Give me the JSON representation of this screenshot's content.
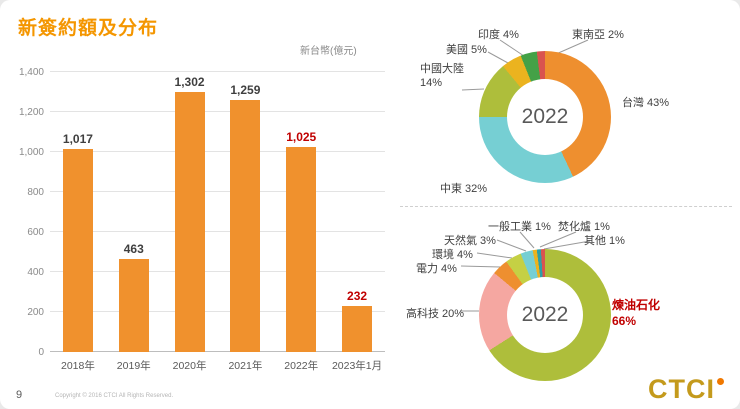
{
  "slide": {
    "title": "新簽約額及分布",
    "page_number": "9",
    "copyright": "Copyright © 2016 CTCI All Rights Reserved.",
    "logo_text": "CTCI"
  },
  "colors": {
    "title": "#F49600",
    "bar": "#F0912D",
    "value_highlight": "#C00000"
  },
  "chart_data": [
    {
      "type": "bar",
      "unit": "新台幣(億元)",
      "categories": [
        "2018年",
        "2019年",
        "2020年",
        "2021年",
        "2022年",
        "2023年1月"
      ],
      "values": [
        1017,
        463,
        1302,
        1259,
        1025,
        232
      ],
      "value_labels": [
        "1,017",
        "463",
        "1,302",
        "1,259",
        "1,025",
        "232"
      ],
      "highlight": [
        false,
        false,
        false,
        false,
        true,
        true
      ],
      "ylim": [
        0,
        1400
      ],
      "ytick_interval": 200,
      "yticks": [
        "0",
        "200",
        "400",
        "600",
        "800",
        "1,000",
        "1,200",
        "1,400"
      ],
      "bar_color": "#F0912D",
      "grid": true
    },
    {
      "type": "pie",
      "subtype": "donut",
      "center_label": "2022",
      "segments": [
        {
          "label": "台灣",
          "pct": 43,
          "color": "#EE8F2F",
          "highlight": false
        },
        {
          "label": "中東",
          "pct": 32,
          "color": "#76CFD3",
          "highlight": false
        },
        {
          "label": "中國大陸",
          "pct": 14,
          "color": "#AEBE3B",
          "highlight": false
        },
        {
          "label": "美國",
          "pct": 5,
          "color": "#EBB31F",
          "highlight": false
        },
        {
          "label": "印度",
          "pct": 4,
          "color": "#44A147",
          "highlight": false
        },
        {
          "label": "東南亞",
          "pct": 2,
          "color": "#D9534F",
          "highlight": false
        }
      ]
    },
    {
      "type": "pie",
      "subtype": "donut",
      "center_label": "2022",
      "segments": [
        {
          "label": "煉油石化",
          "pct": 66,
          "color": "#AEBE3B",
          "highlight": true
        },
        {
          "label": "高科技",
          "pct": 20,
          "color": "#F5A7A1",
          "highlight": false
        },
        {
          "label": "電力",
          "pct": 4,
          "color": "#EE8F2F",
          "highlight": false
        },
        {
          "label": "環境",
          "pct": 4,
          "color": "#C5D044",
          "highlight": false
        },
        {
          "label": "天然氣",
          "pct": 3,
          "color": "#76CFD3",
          "highlight": false
        },
        {
          "label": "一般工業",
          "pct": 1,
          "color": "#EBB31F",
          "highlight": false
        },
        {
          "label": "焚化爐",
          "pct": 1,
          "color": "#2E9FA6",
          "highlight": false
        },
        {
          "label": "其他",
          "pct": 1,
          "color": "#D9534F",
          "highlight": false
        }
      ]
    }
  ]
}
